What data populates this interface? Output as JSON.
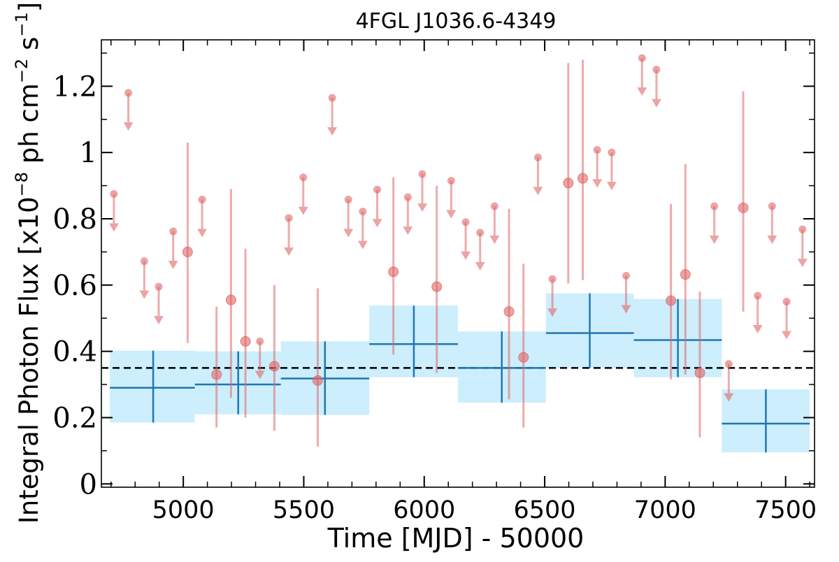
{
  "chart_data": {
    "type": "scatter",
    "title": "4FGL J1036.6-4349",
    "xlabel": "Time [MJD] - 50000",
    "ylabel": "Integral Photon Flux [x10",
    "ylabel_exp1": "−8",
    "ylabel_mid": " ph cm",
    "ylabel_exp2": "−2",
    "ylabel_mid2": " s",
    "ylabel_exp3": "−1",
    "ylabel_end": "]",
    "xlim": [
      4660,
      7620
    ],
    "ylim": [
      -0.01,
      1.34
    ],
    "xticks": [
      5000,
      5500,
      6000,
      6500,
      7000,
      7500
    ],
    "xtick_labels": [
      "5000",
      "5500",
      "6000",
      "6500",
      "7000",
      "7500"
    ],
    "yticks": [
      0,
      0.2,
      0.4,
      0.6,
      0.8,
      1.0,
      1.2
    ],
    "ytick_labels": [
      "0",
      "0.2",
      "0.4",
      "0.6",
      "0.8",
      "1",
      "1.2"
    ],
    "grid": false,
    "colors": {
      "short_bin_points": "#e06666",
      "long_bin_line": "#1f77b4",
      "long_bin_fill": "#cdeefc",
      "mean_line": "#000000"
    },
    "mean_flux": 0.35,
    "long_bins": [
      {
        "x0": 4695,
        "x1": 5048,
        "x": 4875,
        "y": 0.29,
        "lo": 0.185,
        "hi": 0.402
      },
      {
        "x0": 5048,
        "x1": 5405,
        "x": 5228,
        "y": 0.3,
        "lo": 0.21,
        "hi": 0.4
      },
      {
        "x0": 5405,
        "x1": 5772,
        "x": 5588,
        "y": 0.318,
        "lo": 0.208,
        "hi": 0.43
      },
      {
        "x0": 5772,
        "x1": 6140,
        "x": 5957,
        "y": 0.422,
        "lo": 0.322,
        "hi": 0.538
      },
      {
        "x0": 6140,
        "x1": 6505,
        "x": 6322,
        "y": 0.35,
        "lo": 0.245,
        "hi": 0.46
      },
      {
        "x0": 6505,
        "x1": 6870,
        "x": 6687,
        "y": 0.455,
        "lo": 0.35,
        "hi": 0.575
      },
      {
        "x0": 6870,
        "x1": 7235,
        "x": 7053,
        "y": 0.434,
        "lo": 0.322,
        "hi": 0.558
      },
      {
        "x0": 7235,
        "x1": 7600,
        "x": 7418,
        "y": 0.182,
        "lo": 0.095,
        "hi": 0.285
      }
    ],
    "detections": [
      {
        "x": 5018,
        "y": 0.7,
        "lo": 0.425,
        "hi": 1.03
      },
      {
        "x": 5138,
        "y": 0.33,
        "lo": 0.17,
        "hi": 0.535
      },
      {
        "x": 5198,
        "y": 0.555,
        "lo": 0.26,
        "hi": 0.89
      },
      {
        "x": 5258,
        "y": 0.43,
        "lo": 0.2,
        "hi": 0.71
      },
      {
        "x": 5378,
        "y": 0.355,
        "lo": 0.16,
        "hi": 0.6
      },
      {
        "x": 5558,
        "y": 0.312,
        "lo": 0.112,
        "hi": 0.59
      },
      {
        "x": 5872,
        "y": 0.64,
        "lo": 0.39,
        "hi": 0.925
      },
      {
        "x": 6052,
        "y": 0.595,
        "lo": 0.335,
        "hi": 0.9
      },
      {
        "x": 6352,
        "y": 0.52,
        "lo": 0.255,
        "hi": 0.83
      },
      {
        "x": 6412,
        "y": 0.382,
        "lo": 0.17,
        "hi": 0.665
      },
      {
        "x": 6598,
        "y": 0.908,
        "lo": 0.605,
        "hi": 1.27
      },
      {
        "x": 6658,
        "y": 0.922,
        "lo": 0.615,
        "hi": 1.28
      },
      {
        "x": 7024,
        "y": 0.553,
        "lo": 0.315,
        "hi": 0.845
      },
      {
        "x": 7084,
        "y": 0.632,
        "lo": 0.33,
        "hi": 0.965
      },
      {
        "x": 7144,
        "y": 0.335,
        "lo": 0.14,
        "hi": 0.58
      },
      {
        "x": 7324,
        "y": 0.833,
        "lo": 0.52,
        "hi": 1.185
      }
    ],
    "upper_limits": [
      {
        "x": 4712,
        "y": 0.875
      },
      {
        "x": 4772,
        "y": 1.18
      },
      {
        "x": 4838,
        "y": 0.672
      },
      {
        "x": 4898,
        "y": 0.595
      },
      {
        "x": 4958,
        "y": 0.762
      },
      {
        "x": 5078,
        "y": 0.858
      },
      {
        "x": 5318,
        "y": 0.43
      },
      {
        "x": 5438,
        "y": 0.802
      },
      {
        "x": 5498,
        "y": 0.925
      },
      {
        "x": 5618,
        "y": 1.165
      },
      {
        "x": 5685,
        "y": 0.858
      },
      {
        "x": 5745,
        "y": 0.822
      },
      {
        "x": 5805,
        "y": 0.888
      },
      {
        "x": 5932,
        "y": 0.865
      },
      {
        "x": 5992,
        "y": 0.935
      },
      {
        "x": 6112,
        "y": 0.915
      },
      {
        "x": 6172,
        "y": 0.79
      },
      {
        "x": 6232,
        "y": 0.758
      },
      {
        "x": 6292,
        "y": 0.838
      },
      {
        "x": 6472,
        "y": 0.985
      },
      {
        "x": 6532,
        "y": 0.618
      },
      {
        "x": 6718,
        "y": 1.008
      },
      {
        "x": 6778,
        "y": 1.0
      },
      {
        "x": 6838,
        "y": 0.628
      },
      {
        "x": 6904,
        "y": 1.285
      },
      {
        "x": 6964,
        "y": 1.25
      },
      {
        "x": 7204,
        "y": 0.838
      },
      {
        "x": 7264,
        "y": 0.362
      },
      {
        "x": 7384,
        "y": 0.568
      },
      {
        "x": 7444,
        "y": 0.838
      },
      {
        "x": 7504,
        "y": 0.55
      },
      {
        "x": 7570,
        "y": 0.768
      }
    ]
  }
}
